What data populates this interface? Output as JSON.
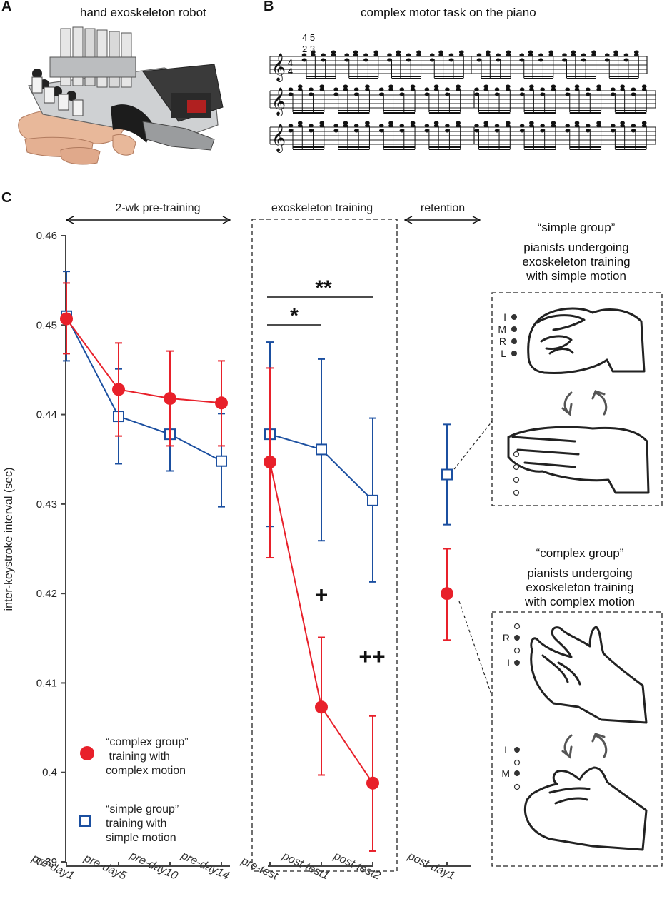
{
  "panels": {
    "a": {
      "letter": "A",
      "title": "hand exoskeleton robot"
    },
    "b": {
      "letter": "B",
      "title": "complex motor task on the piano",
      "time_signature": {
        "top": "4",
        "bottom": "4"
      },
      "fingering": {
        "top": "4 5",
        "bottom": "2 3"
      }
    },
    "c": {
      "letter": "C"
    }
  },
  "phases": {
    "pre": "2-wk pre-training",
    "exo": "exoskeleton training",
    "ret": "retention"
  },
  "significance": {
    "double_star": "**",
    "single_star": "*",
    "plus": "+",
    "double_plus": "++"
  },
  "groups": {
    "simple": {
      "title": "“simple group”",
      "desc": [
        "pianists undergoing",
        "exoskeleton training",
        "with simple motion"
      ],
      "fingers": [
        "I",
        "M",
        "R",
        "L"
      ]
    },
    "complex": {
      "title": "“complex group”",
      "desc": [
        "pianists undergoing",
        "exoskeleton training",
        "with complex motion"
      ],
      "fingers_top": [
        "R",
        "I"
      ],
      "fingers_bottom": [
        "L",
        "M"
      ]
    }
  },
  "legend": {
    "complex": [
      "“complex group”",
      " training with",
      "complex motion"
    ],
    "simple": [
      "“simple group”",
      "training with",
      "simple motion"
    ]
  },
  "chart_data": {
    "type": "line",
    "ylabel": "inter-keystroke interval (sec)",
    "ylim": [
      0.39,
      0.46
    ],
    "yticks": [
      "0.39",
      "0.4",
      "0.41",
      "0.42",
      "0.43",
      "0.44",
      "0.45",
      "0.46"
    ],
    "categories": [
      "pre-day1",
      "pre-day5",
      "pre-day10",
      "pre-day14",
      "pre-test",
      "post-test1",
      "post-test2",
      "post-day1"
    ],
    "series": [
      {
        "name": "complex group",
        "color": "#e8202a",
        "marker": "circle",
        "values": [
          0.4507,
          0.4428,
          0.4418,
          0.4413,
          0.4347,
          0.4073,
          0.3988,
          0.42
        ],
        "err_low": [
          0.4468,
          0.4376,
          0.4365,
          0.4365,
          0.424,
          0.3997,
          0.3912,
          0.4148
        ],
        "err_high": [
          0.4547,
          0.448,
          0.4471,
          0.446,
          0.4452,
          0.4151,
          0.4063,
          0.425
        ]
      },
      {
        "name": "simple group",
        "color": "#1b4fa0",
        "marker": "square",
        "values": [
          0.451,
          0.4398,
          0.4378,
          0.4348,
          0.4378,
          0.4361,
          0.4304,
          0.4333
        ],
        "err_low": [
          0.446,
          0.4345,
          0.4337,
          0.4297,
          0.4275,
          0.4259,
          0.4213,
          0.4277
        ],
        "err_high": [
          0.456,
          0.4451,
          0.4418,
          0.4401,
          0.4481,
          0.4462,
          0.4396,
          0.4389
        ]
      }
    ]
  }
}
